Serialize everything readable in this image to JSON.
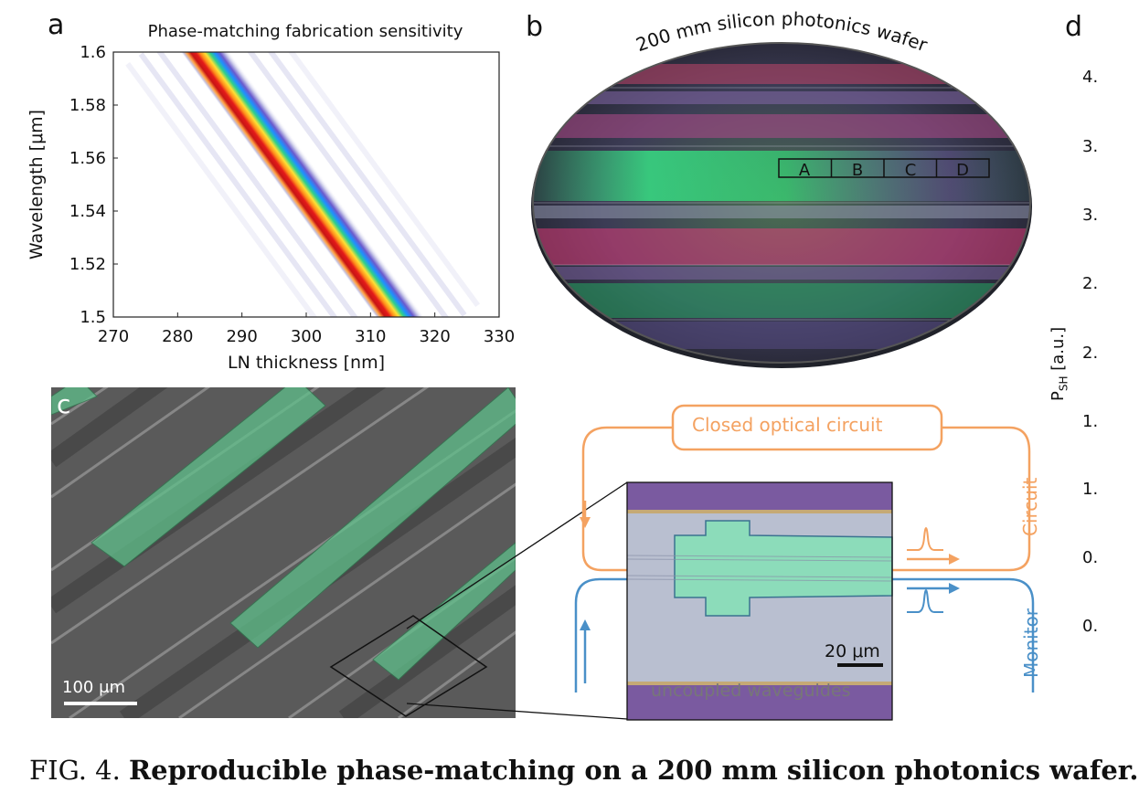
{
  "panels": {
    "a": {
      "letter": "a",
      "title": "Phase-matching fabrication sensitivity",
      "xlabel": "LN thickness [nm]",
      "ylabel": "Wavelength [μm]"
    },
    "b": {
      "letter": "b",
      "wafer_label": "200 mm silicon photonics wafer",
      "dies": [
        "A",
        "B",
        "C",
        "D"
      ]
    },
    "c": {
      "letter": "c",
      "scalebar": "100 μm"
    },
    "inset": {
      "closed_circuit": "Closed optical circuit",
      "circuit_label": "Circuit",
      "monitor_label": "Monitor",
      "scalebar": "20 μm",
      "uncoupled": "uncoupled waveguides",
      "colors": {
        "circuit": "#f4a261",
        "monitor": "#4a90c8"
      }
    },
    "d": {
      "letter": "d",
      "ylabel_main": "P",
      "ylabel_sub": "SH",
      "ylabel_unit": " [a.u.]",
      "ytick_fragments": [
        "4.",
        "3.",
        "3.",
        "2.",
        "2.",
        "1.",
        "1.",
        "0.",
        "0."
      ]
    }
  },
  "chart_data": {
    "type": "heatmap",
    "title": "Phase-matching fabrication sensitivity",
    "xlabel": "LN thickness [nm]",
    "ylabel": "Wavelength [μm]",
    "xlim": [
      270,
      330
    ],
    "ylim": [
      1.5,
      1.6
    ],
    "xticks": [
      "270",
      "280",
      "290",
      "300",
      "310",
      "320",
      "330"
    ],
    "yticks": [
      "1.5",
      "1.52",
      "1.54",
      "1.56",
      "1.58",
      "1.6"
    ],
    "band_center": [
      {
        "x": 284.3,
        "y": 1.6
      },
      {
        "x": 300.0,
        "y": 1.55
      },
      {
        "x": 314.6,
        "y": 1.5
      }
    ],
    "colormap": "white-purple-blue-green-yellow-red"
  },
  "caption": {
    "prefix": "FIG. 4.",
    "bold": "Reproducible phase-matching on a 200 mm silicon photonics wafer."
  }
}
